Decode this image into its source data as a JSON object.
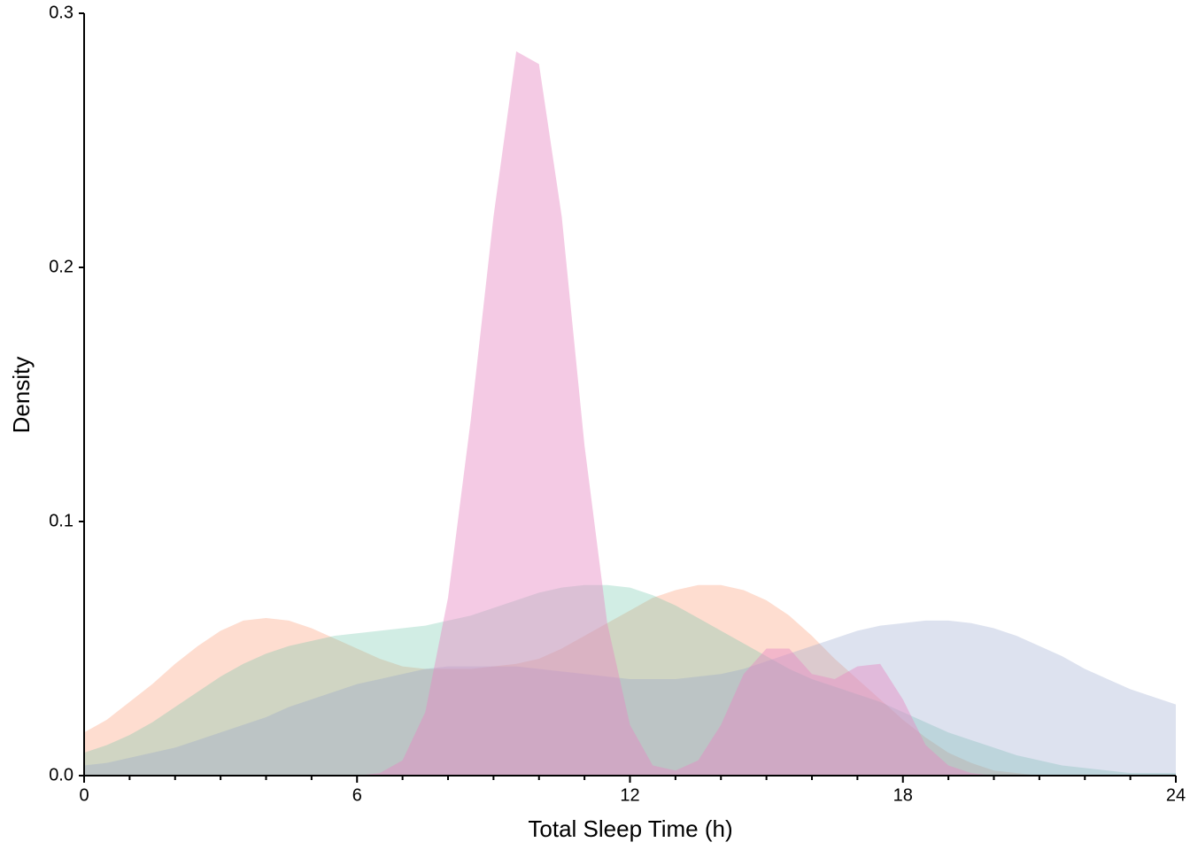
{
  "chart_data": {
    "type": "density",
    "xlabel": "Total Sleep Time (h)",
    "ylabel": "Density",
    "x": [
      0,
      0.5,
      1,
      1.5,
      2,
      2.5,
      3,
      3.5,
      4,
      4.5,
      5,
      5.5,
      6,
      6.5,
      7,
      7.5,
      8,
      8.5,
      9,
      9.5,
      10,
      10.5,
      11,
      11.5,
      12,
      12.5,
      13,
      13.5,
      14,
      14.5,
      15,
      15.5,
      16,
      16.5,
      17,
      17.5,
      18,
      18.5,
      19,
      19.5,
      20,
      20.5,
      21,
      21.5,
      22,
      22.5,
      23,
      23.5,
      24
    ],
    "series": [
      {
        "color": "#fc8d62",
        "values": [
          0.017,
          0.022,
          0.029,
          0.036,
          0.044,
          0.051,
          0.057,
          0.061,
          0.062,
          0.061,
          0.058,
          0.054,
          0.05,
          0.046,
          0.043,
          0.042,
          0.042,
          0.042,
          0.043,
          0.044,
          0.046,
          0.05,
          0.055,
          0.06,
          0.065,
          0.07,
          0.073,
          0.075,
          0.075,
          0.073,
          0.069,
          0.063,
          0.055,
          0.046,
          0.038,
          0.03,
          0.022,
          0.015,
          0.009,
          0.005,
          0.002,
          0.001,
          0,
          0,
          0,
          0,
          0,
          0,
          0
        ]
      },
      {
        "color": "#66c2a5",
        "values": [
          0.009,
          0.012,
          0.016,
          0.021,
          0.027,
          0.033,
          0.039,
          0.044,
          0.048,
          0.051,
          0.053,
          0.055,
          0.056,
          0.057,
          0.058,
          0.059,
          0.061,
          0.063,
          0.066,
          0.069,
          0.072,
          0.074,
          0.075,
          0.075,
          0.074,
          0.071,
          0.067,
          0.062,
          0.057,
          0.052,
          0.047,
          0.042,
          0.038,
          0.035,
          0.032,
          0.029,
          0.025,
          0.021,
          0.017,
          0.014,
          0.011,
          0.008,
          0.006,
          0.004,
          0.003,
          0.002,
          0.001,
          0.001,
          0.001
        ]
      },
      {
        "color": "#8da0cb",
        "values": [
          0.004,
          0.005,
          0.007,
          0.009,
          0.011,
          0.014,
          0.017,
          0.02,
          0.023,
          0.027,
          0.03,
          0.033,
          0.036,
          0.038,
          0.04,
          0.042,
          0.043,
          0.043,
          0.043,
          0.043,
          0.042,
          0.041,
          0.04,
          0.039,
          0.038,
          0.038,
          0.038,
          0.039,
          0.04,
          0.042,
          0.045,
          0.048,
          0.051,
          0.054,
          0.057,
          0.059,
          0.06,
          0.061,
          0.061,
          0.06,
          0.058,
          0.055,
          0.051,
          0.047,
          0.042,
          0.038,
          0.034,
          0.031,
          0.028
        ]
      },
      {
        "color": "#e78ac3",
        "values": [
          0,
          0,
          0,
          0,
          0,
          0,
          0,
          0,
          0,
          0,
          0,
          0,
          0,
          0.001,
          0.006,
          0.025,
          0.07,
          0.14,
          0.22,
          0.285,
          0.28,
          0.22,
          0.13,
          0.06,
          0.02,
          0.004,
          0.002,
          0.006,
          0.02,
          0.04,
          0.05,
          0.05,
          0.04,
          0.038,
          0.043,
          0.044,
          0.03,
          0.012,
          0.004,
          0.001,
          0,
          0,
          0,
          0,
          0,
          0,
          0,
          0,
          0
        ]
      }
    ],
    "xlim": [
      0,
      24
    ],
    "ylim": [
      0,
      0.3
    ],
    "xticks": [
      0,
      6,
      12,
      18,
      24
    ],
    "xminorticks": [
      1,
      2,
      3,
      4,
      5,
      7,
      8,
      9,
      10,
      11,
      13,
      14,
      15,
      16,
      17,
      19,
      20,
      21,
      22,
      23
    ],
    "yticks": [
      {
        "value": 0,
        "label": "0.0"
      },
      0.1,
      0.2,
      0.3
    ]
  }
}
